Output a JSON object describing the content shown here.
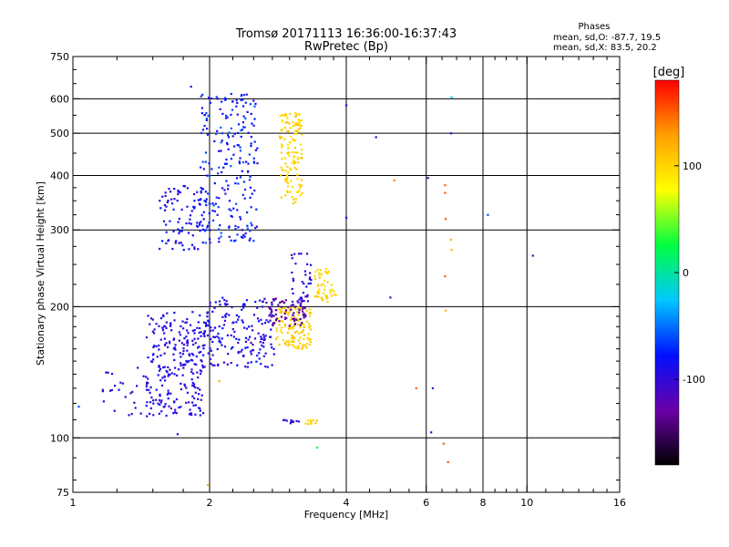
{
  "chart_data": {
    "type": "scatter",
    "title": "Tromsø 20171113 16:36:00-16:37:43",
    "subtitle": "RwPretec (Bp)",
    "xlabel": "Frequency [MHz]",
    "ylabel": "Stationary phase Virtual Height [km]",
    "xscale": "log",
    "yscale": "log",
    "xlim": [
      1,
      16
    ],
    "ylim": [
      75,
      750
    ],
    "xticks": [
      {
        "value": 1,
        "label": "1"
      },
      {
        "value": 2,
        "label": "2"
      },
      {
        "value": 4,
        "label": "4"
      },
      {
        "value": 6,
        "label": "6"
      },
      {
        "value": 8,
        "label": "8"
      },
      {
        "value": 10,
        "label": "10"
      },
      {
        "value": 16,
        "label": "16"
      }
    ],
    "yticks": [
      {
        "value": 75,
        "label": "75"
      },
      {
        "value": 100,
        "label": "100"
      },
      {
        "value": 200,
        "label": "200"
      },
      {
        "value": 300,
        "label": "300"
      },
      {
        "value": 400,
        "label": "400"
      },
      {
        "value": 500,
        "label": "500"
      },
      {
        "value": 600,
        "label": "600"
      },
      {
        "value": 750,
        "label": "750"
      }
    ],
    "grid_x": [
      2,
      4,
      6,
      8,
      10
    ],
    "grid_y": [
      100,
      200,
      300,
      400,
      500,
      600
    ],
    "grid": true,
    "info": {
      "heading": "Phases",
      "line_o": "mean, sd,O: -87.7, 19.5",
      "line_x": "mean, sd,X:  83.5, 20.2"
    },
    "colorbar": {
      "label": "[deg]",
      "min": -180,
      "max": 180,
      "ticks": [
        {
          "value": 100,
          "label": "100"
        },
        {
          "value": 0,
          "label": "0"
        },
        {
          "value": -100,
          "label": "-100"
        }
      ],
      "colors": [
        "#000000",
        "#6a00a8",
        "#0010ff",
        "#00c8ff",
        "#00ff40",
        "#ffff00",
        "#ffa000",
        "#ff0000"
      ]
    },
    "clusters": [
      {
        "xr": [
          1.45,
          1.95
        ],
        "yr": [
          112,
          195
        ],
        "n": 260,
        "phase": [
          -110,
          -80
        ]
      },
      {
        "xr": [
          1.95,
          2.8
        ],
        "yr": [
          145,
          210
        ],
        "n": 180,
        "phase": [
          -110,
          -75
        ]
      },
      {
        "xr": [
          1.55,
          2.0
        ],
        "yr": [
          270,
          380
        ],
        "n": 90,
        "phase": [
          -105,
          -70
        ]
      },
      {
        "xr": [
          1.9,
          2.55
        ],
        "yr": [
          280,
          620
        ],
        "n": 230,
        "phase": [
          -100,
          -55
        ]
      },
      {
        "xr": [
          2.85,
          3.2
        ],
        "yr": [
          345,
          560
        ],
        "n": 130,
        "phase": [
          90,
          112
        ]
      },
      {
        "xr": [
          2.8,
          3.35
        ],
        "yr": [
          160,
          200
        ],
        "n": 130,
        "phase": [
          95,
          112
        ]
      },
      {
        "xr": [
          3.4,
          3.8
        ],
        "yr": [
          205,
          245
        ],
        "n": 50,
        "phase": [
          92,
          108
        ]
      },
      {
        "xr": [
          2.7,
          3.25
        ],
        "yr": [
          180,
          210
        ],
        "n": 60,
        "phase": [
          -145,
          -120
        ]
      },
      {
        "xr": [
          3.0,
          3.35
        ],
        "yr": [
          190,
          265
        ],
        "n": 45,
        "phase": [
          -115,
          -85
        ]
      },
      {
        "xr": [
          1.15,
          1.45
        ],
        "yr": [
          112,
          145
        ],
        "n": 25,
        "phase": [
          -110,
          -85
        ]
      },
      {
        "xr": [
          2.85,
          3.15
        ],
        "yr": [
          108,
          110
        ],
        "n": 10,
        "phase": [
          -110,
          -95
        ]
      },
      {
        "xr": [
          3.25,
          3.45
        ],
        "yr": [
          107,
          110
        ],
        "n": 10,
        "phase": [
          95,
          110
        ]
      }
    ],
    "points": [
      {
        "x": 1.82,
        "y": 640,
        "phase": -95
      },
      {
        "x": 1.03,
        "y": 118,
        "phase": -60
      },
      {
        "x": 1.7,
        "y": 102,
        "phase": -95
      },
      {
        "x": 1.98,
        "y": 78,
        "phase": 110
      },
      {
        "x": 2.1,
        "y": 135,
        "phase": 120
      },
      {
        "x": 3.45,
        "y": 95,
        "phase": 20
      },
      {
        "x": 4.0,
        "y": 580,
        "phase": -100
      },
      {
        "x": 4.0,
        "y": 320,
        "phase": -100
      },
      {
        "x": 4.65,
        "y": 490,
        "phase": -100
      },
      {
        "x": 5.1,
        "y": 390,
        "phase": 140
      },
      {
        "x": 5.0,
        "y": 210,
        "phase": -100
      },
      {
        "x": 5.7,
        "y": 130,
        "phase": 150
      },
      {
        "x": 6.05,
        "y": 395,
        "phase": -100
      },
      {
        "x": 6.2,
        "y": 130,
        "phase": -100
      },
      {
        "x": 6.15,
        "y": 103,
        "phase": -100
      },
      {
        "x": 6.6,
        "y": 380,
        "phase": 150
      },
      {
        "x": 6.6,
        "y": 365,
        "phase": 150
      },
      {
        "x": 6.62,
        "y": 318,
        "phase": 150
      },
      {
        "x": 6.6,
        "y": 235,
        "phase": 150
      },
      {
        "x": 6.62,
        "y": 196,
        "phase": 120
      },
      {
        "x": 6.55,
        "y": 97,
        "phase": 150
      },
      {
        "x": 6.7,
        "y": 88,
        "phase": 150
      },
      {
        "x": 6.8,
        "y": 500,
        "phase": -100
      },
      {
        "x": 6.82,
        "y": 605,
        "phase": -20
      },
      {
        "x": 6.8,
        "y": 285,
        "phase": 120
      },
      {
        "x": 6.82,
        "y": 270,
        "phase": 120
      },
      {
        "x": 8.2,
        "y": 325,
        "phase": -60
      },
      {
        "x": 10.3,
        "y": 262,
        "phase": -100
      }
    ]
  }
}
